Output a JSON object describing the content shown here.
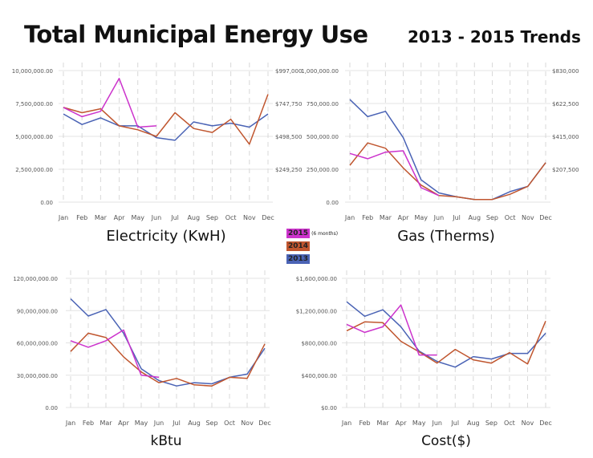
{
  "title": "Total Municipal Energy Use",
  "subtitle": "2013 - 2015 Trends",
  "legend": [
    {
      "label": "2015",
      "note": "(6 months)",
      "color": "#cc33cc"
    },
    {
      "label": "2014",
      "note": "",
      "color": "#c0562f"
    },
    {
      "label": "2013",
      "note": "",
      "color": "#4a63b5"
    }
  ],
  "chart_data": [
    {
      "type": "line",
      "title": "Electricity (KwH)",
      "categories": [
        "Jan",
        "Feb",
        "Mar",
        "Apr",
        "May",
        "Jun",
        "Jul",
        "Aug",
        "Sep",
        "Oct",
        "Nov",
        "Dec"
      ],
      "ylim": [
        0,
        10000000
      ],
      "yticks": [
        "0.00",
        "2,500,000.00",
        "5,000,000.00",
        "7,500,000.00",
        "10,000,000.00"
      ],
      "right_ticks": [
        "$249,250",
        "$498,500",
        "$747,750",
        "$997,000"
      ],
      "series": [
        {
          "name": "2013",
          "color": "#4a63b5",
          "values": [
            6700000,
            5900000,
            6400000,
            5800000,
            5800000,
            4900000,
            4700000,
            6100000,
            5800000,
            6000000,
            5700000,
            6700000
          ]
        },
        {
          "name": "2014",
          "color": "#c0562f",
          "values": [
            7200000,
            6800000,
            7100000,
            5800000,
            5500000,
            5000000,
            6800000,
            5600000,
            5300000,
            6300000,
            4400000,
            8200000
          ]
        },
        {
          "name": "2015",
          "color": "#cc33cc",
          "values": [
            7200000,
            6500000,
            6900000,
            9400000,
            5700000,
            5800000,
            null,
            null,
            null,
            null,
            null,
            null
          ]
        }
      ]
    },
    {
      "type": "line",
      "title": "Gas (Therms)",
      "categories": [
        "Jan",
        "Feb",
        "Mar",
        "Apr",
        "May",
        "Jun",
        "Jul",
        "Aug",
        "Sep",
        "Oct",
        "Nov",
        "Dec"
      ],
      "ylim": [
        0,
        1000000
      ],
      "yticks": [
        "0.00",
        "250,000.00",
        "500,000.00",
        "750,000.00",
        "1,000,000.00"
      ],
      "right_ticks": [
        "$207,500",
        "$415,000",
        "$622,500",
        "$830,000"
      ],
      "series": [
        {
          "name": "2013",
          "color": "#4a63b5",
          "values": [
            780000,
            650000,
            690000,
            490000,
            170000,
            70000,
            40000,
            20000,
            20000,
            80000,
            120000,
            300000
          ]
        },
        {
          "name": "2014",
          "color": "#c0562f",
          "values": [
            280000,
            450000,
            410000,
            260000,
            130000,
            50000,
            40000,
            20000,
            20000,
            60000,
            120000,
            300000
          ]
        },
        {
          "name": "2015",
          "color": "#cc33cc",
          "values": [
            370000,
            330000,
            380000,
            390000,
            110000,
            50000,
            null,
            null,
            null,
            null,
            null,
            null
          ]
        }
      ]
    },
    {
      "type": "line",
      "title": "kBtu",
      "categories": [
        "Jan",
        "Feb",
        "Mar",
        "Apr",
        "May",
        "Jun",
        "Jul",
        "Aug",
        "Sep",
        "Oct",
        "Nov",
        "Dec"
      ],
      "ylim": [
        0,
        120000000
      ],
      "yticks": [
        "0.00",
        "30,000,000.00",
        "60,000,000.00",
        "90,000,000.00",
        "120,000,000.00"
      ],
      "right_ticks": [],
      "series": [
        {
          "name": "2013",
          "color": "#4a63b5",
          "values": [
            101000000,
            85000000,
            91000000,
            69000000,
            36000000,
            25000000,
            20000000,
            23000000,
            22000000,
            28000000,
            31000000,
            55000000
          ]
        },
        {
          "name": "2014",
          "color": "#c0562f",
          "values": [
            52000000,
            69000000,
            65000000,
            47000000,
            33000000,
            23000000,
            27000000,
            21000000,
            20000000,
            28000000,
            27000000,
            59000000
          ]
        },
        {
          "name": "2015",
          "color": "#cc33cc",
          "values": [
            62000000,
            56000000,
            62000000,
            72000000,
            30000000,
            28000000,
            null,
            null,
            null,
            null,
            null,
            null
          ]
        }
      ]
    },
    {
      "type": "line",
      "title": "Cost($)",
      "categories": [
        "Jan",
        "Feb",
        "Mar",
        "Apr",
        "May",
        "Jun",
        "Jul",
        "Aug",
        "Sep",
        "Oct",
        "Nov",
        "Dec"
      ],
      "ylim": [
        0,
        1600000
      ],
      "yticks": [
        "$0.00",
        "$400,000.00",
        "$800,000.00",
        "$1,200,000.00",
        "$1,600,000.00"
      ],
      "right_ticks": [],
      "series": [
        {
          "name": "2013",
          "color": "#4a63b5",
          "values": [
            1310000,
            1130000,
            1210000,
            1000000,
            700000,
            570000,
            500000,
            630000,
            600000,
            670000,
            670000,
            920000
          ]
        },
        {
          "name": "2014",
          "color": "#c0562f",
          "values": [
            950000,
            1060000,
            1050000,
            820000,
            690000,
            550000,
            720000,
            590000,
            550000,
            680000,
            540000,
            1070000
          ]
        },
        {
          "name": "2015",
          "color": "#cc33cc",
          "values": [
            1030000,
            930000,
            1000000,
            1270000,
            650000,
            650000,
            null,
            null,
            null,
            null,
            null,
            null
          ]
        }
      ]
    }
  ]
}
